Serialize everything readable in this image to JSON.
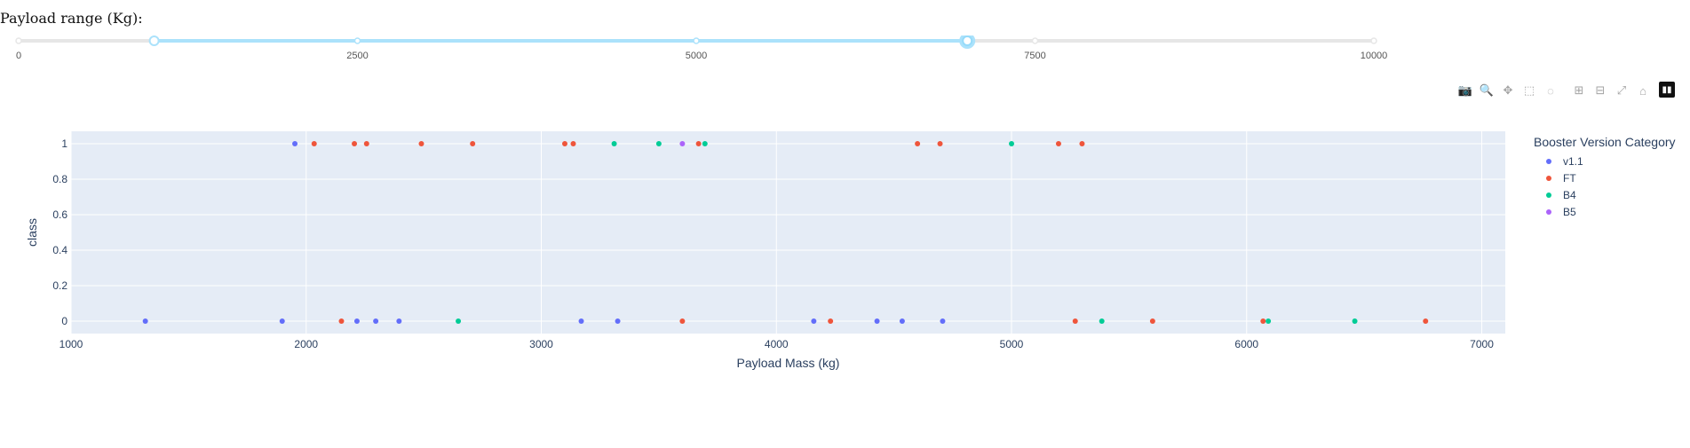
{
  "slider": {
    "label": "Payload range (Kg):",
    "min": 0,
    "max": 10000,
    "marks": [
      "0",
      "2500",
      "5000",
      "7500",
      "10000"
    ],
    "value": [
      1000,
      7000
    ]
  },
  "modebar": {
    "buttons": [
      {
        "name": "camera-icon",
        "glyph": "📷"
      },
      {
        "name": "zoom-icon",
        "glyph": "🔍"
      },
      {
        "name": "pan-icon",
        "glyph": "✥"
      },
      {
        "name": "box-select-icon",
        "glyph": "⬚"
      },
      {
        "name": "lasso-select-icon",
        "glyph": "◌"
      },
      {
        "name": "zoom-in-icon",
        "glyph": "⊞"
      },
      {
        "name": "zoom-out-icon",
        "glyph": "⊟"
      },
      {
        "name": "autoscale-icon",
        "glyph": "⤢"
      },
      {
        "name": "reset-axes-icon",
        "glyph": "⌂"
      }
    ]
  },
  "legend": {
    "title": "Booster Version Category",
    "colors": {
      "v1.1": "#636efa",
      "FT": "#ef553b",
      "B4": "#00cc96",
      "B5": "#ab63fa"
    }
  },
  "chart_data": {
    "type": "scatter",
    "xlabel": "Payload Mass (kg)",
    "ylabel": "class",
    "xlim": [
      1000,
      7100
    ],
    "ylim": [
      -0.07,
      1.07
    ],
    "xticks": [
      "1000",
      "2000",
      "3000",
      "4000",
      "5000",
      "6000",
      "7000"
    ],
    "yticks": [
      "0",
      "0.2",
      "0.4",
      "0.6",
      "0.8",
      "1"
    ],
    "grid": true,
    "legend_position": "right",
    "series": [
      {
        "name": "v1.1",
        "points": [
          [
            1316,
            0
          ],
          [
            1898,
            0
          ],
          [
            1952,
            1
          ],
          [
            2216,
            0
          ],
          [
            2296,
            0
          ],
          [
            2395,
            0
          ],
          [
            3170,
            0
          ],
          [
            3325,
            0
          ],
          [
            4159,
            0
          ],
          [
            4428,
            0
          ],
          [
            4535,
            0
          ],
          [
            4707,
            0
          ]
        ]
      },
      {
        "name": "FT",
        "points": [
          [
            2034,
            1
          ],
          [
            2150,
            0
          ],
          [
            2205,
            1
          ],
          [
            2257,
            1
          ],
          [
            2490,
            1
          ],
          [
            2708,
            1
          ],
          [
            3100,
            1
          ],
          [
            3136,
            1
          ],
          [
            3600,
            0
          ],
          [
            3669,
            1
          ],
          [
            4230,
            0
          ],
          [
            4600,
            1
          ],
          [
            4696,
            1
          ],
          [
            5200,
            1
          ],
          [
            5271,
            0
          ],
          [
            5300,
            1
          ],
          [
            5600,
            0
          ],
          [
            6070,
            0
          ],
          [
            6761,
            0
          ]
        ]
      },
      {
        "name": "B4",
        "points": [
          [
            2647,
            0
          ],
          [
            3310,
            1
          ],
          [
            3500,
            1
          ],
          [
            3696,
            1
          ],
          [
            5000,
            1
          ],
          [
            5384,
            0
          ],
          [
            6092,
            0
          ],
          [
            6460,
            0
          ]
        ]
      },
      {
        "name": "B5",
        "points": [
          [
            3600,
            1
          ]
        ]
      }
    ]
  }
}
